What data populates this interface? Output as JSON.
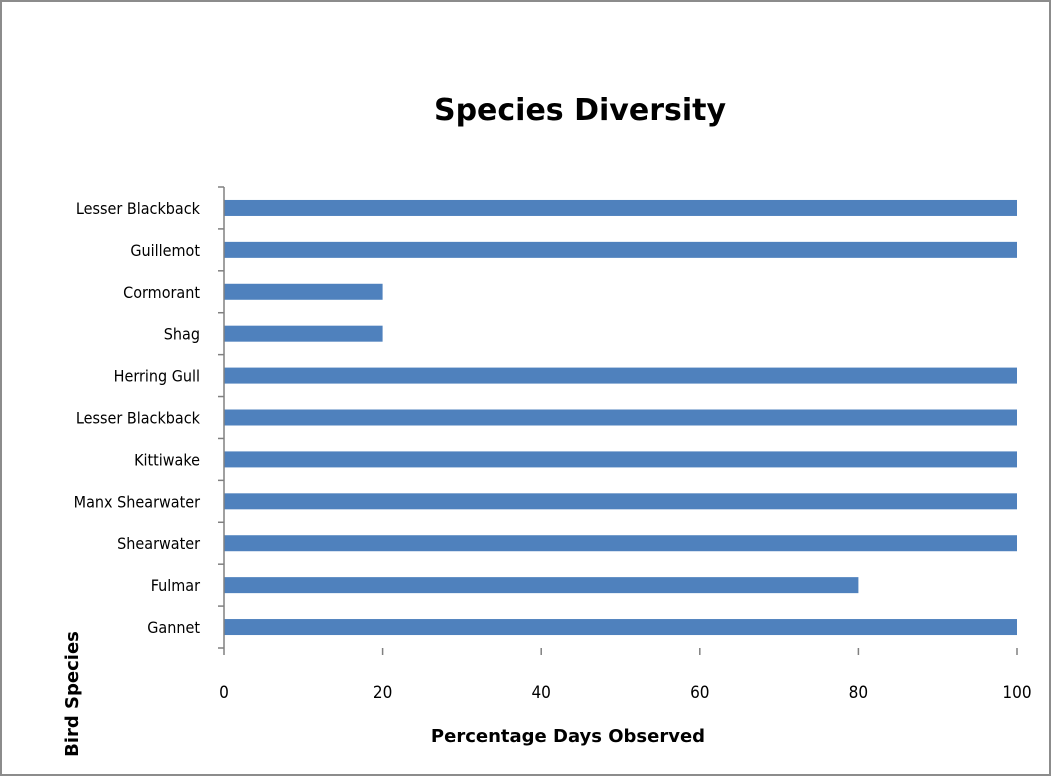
{
  "chart_data": {
    "type": "bar",
    "orientation": "horizontal",
    "title": "Species Diversity",
    "xlabel": "Percentage Days Observed",
    "ylabel": "Bird Species",
    "categories": [
      "Gannet",
      "Fulmar",
      "Shearwater",
      "Manx Shearwater",
      "Kittiwake",
      "Lesser Blackback",
      "Herring Gull",
      "Shag",
      "Cormorant",
      "Guillemot",
      "Lesser Blackback"
    ],
    "values": [
      100,
      80,
      100,
      100,
      100,
      100,
      100,
      20,
      20,
      100,
      100
    ],
    "xlim": [
      0,
      100
    ],
    "xticks": [
      "0",
      "20",
      "40",
      "60",
      "80",
      "100"
    ],
    "grid": false,
    "legend": false,
    "bar_color": "#4F81BD"
  }
}
